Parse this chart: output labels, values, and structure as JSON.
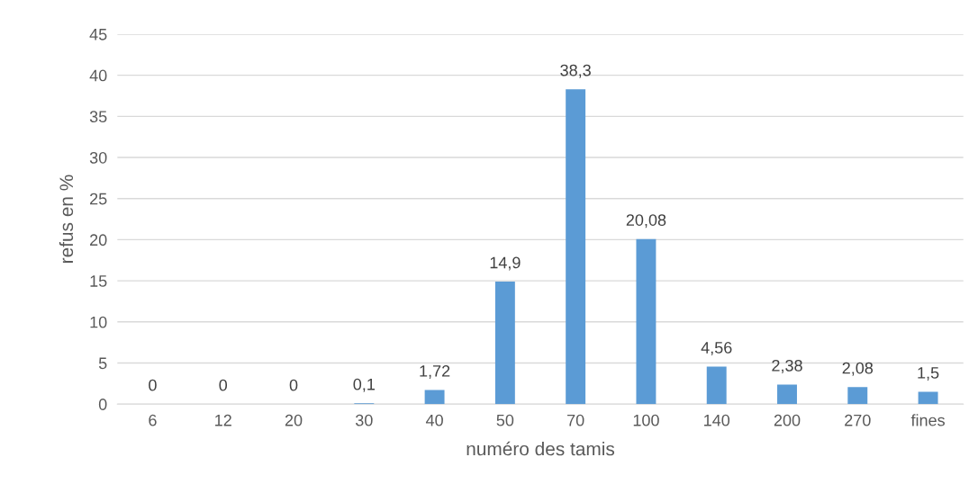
{
  "chart_data": {
    "type": "bar",
    "xlabel": "numéro des tamis",
    "ylabel": "refus en %",
    "categories": [
      "6",
      "12",
      "20",
      "30",
      "40",
      "50",
      "70",
      "100",
      "140",
      "200",
      "270",
      "fines"
    ],
    "values": [
      0,
      0,
      0,
      0.1,
      1.72,
      14.9,
      38.3,
      20.08,
      4.56,
      2.38,
      2.08,
      1.5
    ],
    "value_labels": [
      "0",
      "0",
      "0",
      "0,1",
      "1,72",
      "14,9",
      "38,3",
      "20,08",
      "4,56",
      "2,38",
      "2,08",
      "1,5"
    ],
    "color": "#5b9bd5",
    "ylim": [
      0,
      45
    ],
    "yticks": [
      0,
      5,
      10,
      15,
      20,
      25,
      30,
      35,
      40,
      45
    ],
    "grid": "y",
    "legend": false
  }
}
